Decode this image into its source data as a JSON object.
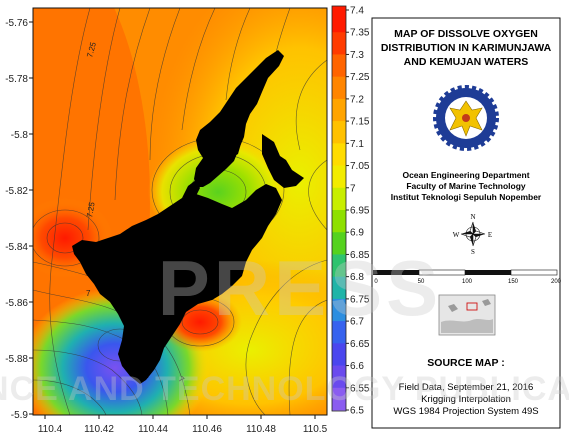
{
  "map": {
    "x_ticks": [
      "110.4",
      "110.42",
      "110.44",
      "110.46",
      "110.48",
      "110.5"
    ],
    "y_ticks": [
      "-5.76",
      "-5.78",
      "-5.8",
      "-5.82",
      "-5.84",
      "-5.86",
      "-5.88",
      "-5.9"
    ],
    "contour_labels": [
      "7.25",
      "7.25",
      "7",
      "7",
      "7"
    ]
  },
  "colorbar": {
    "ticks": [
      "7.4",
      "7.35",
      "7.3",
      "7.25",
      "7.2",
      "7.15",
      "7.1",
      "7.05",
      "7",
      "6.95",
      "6.9",
      "6.85",
      "6.8",
      "6.75",
      "6.7",
      "6.65",
      "6.6",
      "6.55",
      "6.5"
    ],
    "colors_top_to_bottom": [
      "#ff1a00",
      "#ff3b00",
      "#ff6400",
      "#ff8500",
      "#ffa400",
      "#ffc100",
      "#ffdc00",
      "#f2ec00",
      "#c8ee00",
      "#8ee000",
      "#55d21e",
      "#2ec36e",
      "#1fb4a8",
      "#2c8ee0",
      "#3662ee",
      "#4a46ee",
      "#6a4aee",
      "#8a5cf0"
    ]
  },
  "panel": {
    "title_lines": [
      "MAP OF DISSOLVE OXYGEN",
      "DISTRIBUTION IN KARIMUNJAWA",
      "AND KEMUJAN WATERS"
    ],
    "institution_lines": [
      "Ocean Engineering Department",
      "Faculty of Marine Technology",
      "Institut Teknologi Sepuluh Nopember"
    ],
    "compass_labels": {
      "n": "N",
      "s": "S",
      "e": "E",
      "w": "W"
    },
    "scale_labels": [
      "0",
      "50",
      "100",
      "150",
      "200"
    ],
    "source_title": "SOURCE MAP :",
    "source_lines": [
      "Field Data, September 21, 2016",
      "Krigging Interpolation",
      "WGS 1984 Projection System 49S"
    ]
  },
  "watermark": {
    "text": "SCIENCE AND TECHNOLOGY PUBLICATIONS",
    "big": "PRESS"
  },
  "colors": {
    "land": "#000000",
    "frame": "#111111",
    "map_base": "#ff8c00"
  }
}
